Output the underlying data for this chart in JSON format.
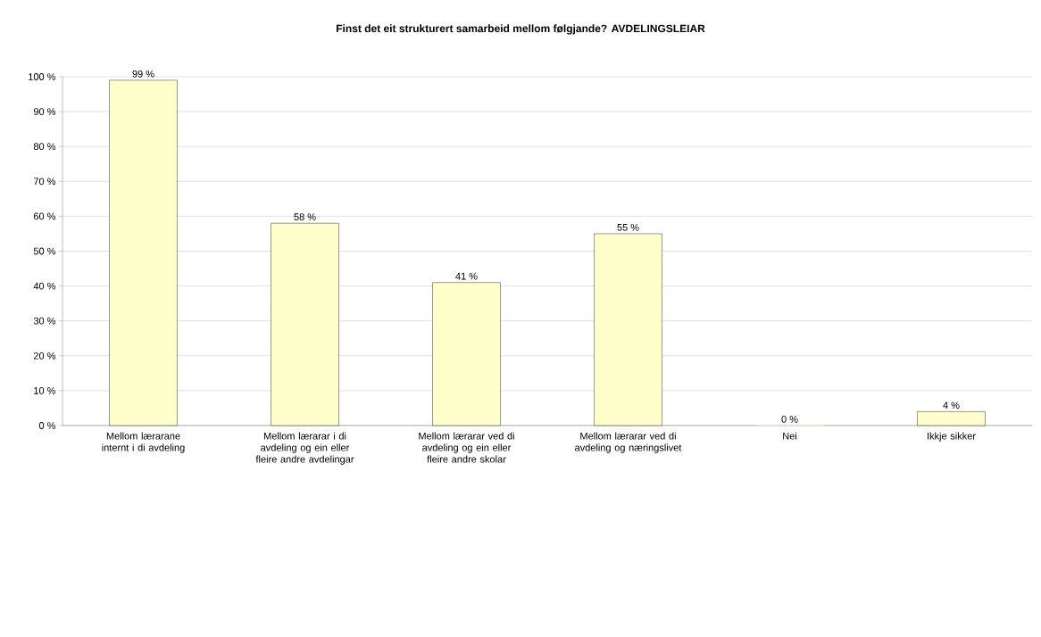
{
  "chart_data": {
    "type": "bar",
    "title": "Finst det eit strukturert samarbeid mellom følgjande? AVDELINGSLEIAR",
    "categories": [
      "Mellom lærarane internt i di avdeling",
      "Mellom lærarar i di avdeling og ein eller fleire andre avdelingar",
      "Mellom lærarar ved di avdeling og ein eller fleire andre skolar",
      "Mellom lærarar ved di avdeling og næringslivet",
      "Nei",
      "Ikkje sikker"
    ],
    "values": [
      99,
      58,
      41,
      55,
      0,
      4
    ],
    "value_labels": [
      "99 %",
      "58 %",
      "41 %",
      "55 %",
      "0 %",
      "4 %"
    ],
    "color": "#ffffcc",
    "ylim": [
      0,
      100
    ],
    "yticks": [
      {
        "value": 0,
        "label": "0 %"
      },
      {
        "value": 10,
        "label": "10 %"
      },
      {
        "value": 20,
        "label": "20 %"
      },
      {
        "value": 30,
        "label": "30 %"
      },
      {
        "value": 40,
        "label": "40 %"
      },
      {
        "value": 50,
        "label": "50 %"
      },
      {
        "value": 60,
        "label": "60 %"
      },
      {
        "value": 70,
        "label": "70 %"
      },
      {
        "value": 80,
        "label": "80 %"
      },
      {
        "value": 90,
        "label": "90 %"
      },
      {
        "value": 100,
        "label": "100 %"
      }
    ],
    "grid": "y"
  }
}
